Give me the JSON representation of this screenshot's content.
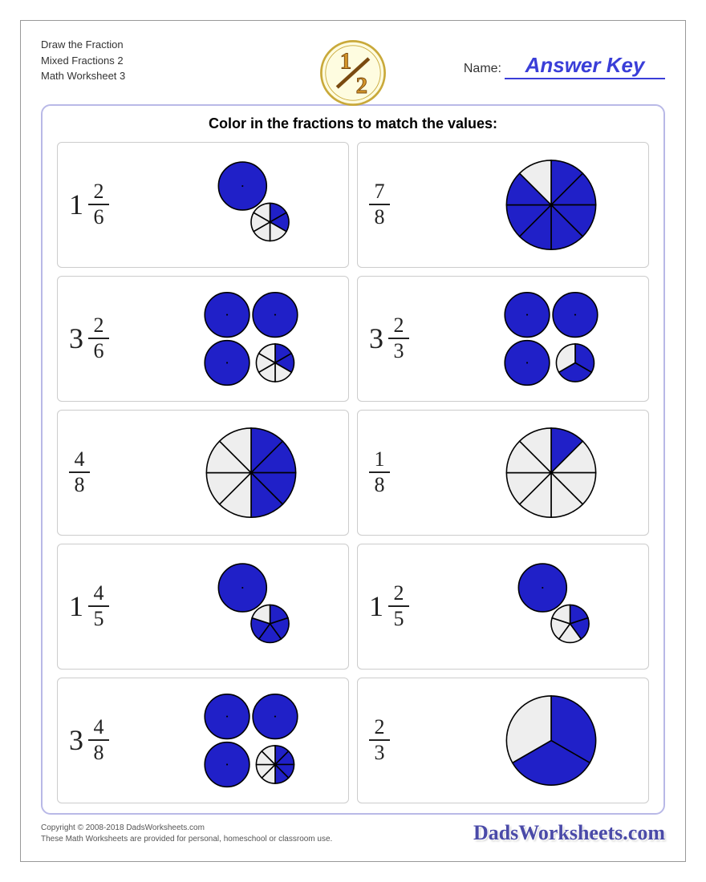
{
  "colors": {
    "fill": "#2020c8",
    "empty": "#eeeeee",
    "stroke": "#000000",
    "accent": "#3a3ed8",
    "border": "#b9b9e7"
  },
  "header": {
    "line1": "Draw the Fraction",
    "line2": "Mixed Fractions 2",
    "line3": "Math Worksheet 3",
    "name_label": "Name:",
    "answer_key": "Answer Key"
  },
  "instruction": "Color in the fractions to match the values:",
  "problems": [
    {
      "whole": 1,
      "num": 2,
      "den": 6
    },
    {
      "whole": 0,
      "num": 7,
      "den": 8
    },
    {
      "whole": 3,
      "num": 2,
      "den": 6
    },
    {
      "whole": 3,
      "num": 2,
      "den": 3
    },
    {
      "whole": 0,
      "num": 4,
      "den": 8
    },
    {
      "whole": 0,
      "num": 1,
      "den": 8
    },
    {
      "whole": 1,
      "num": 4,
      "den": 5
    },
    {
      "whole": 1,
      "num": 2,
      "den": 5
    },
    {
      "whole": 3,
      "num": 4,
      "den": 8
    },
    {
      "whole": 0,
      "num": 2,
      "den": 3
    }
  ],
  "footer": {
    "copyright": "Copyright © 2008-2018 DadsWorksheets.com",
    "note": "These Math Worksheets are provided for personal, homeschool or classroom use.",
    "brand": "DadsWorksheets.com"
  }
}
